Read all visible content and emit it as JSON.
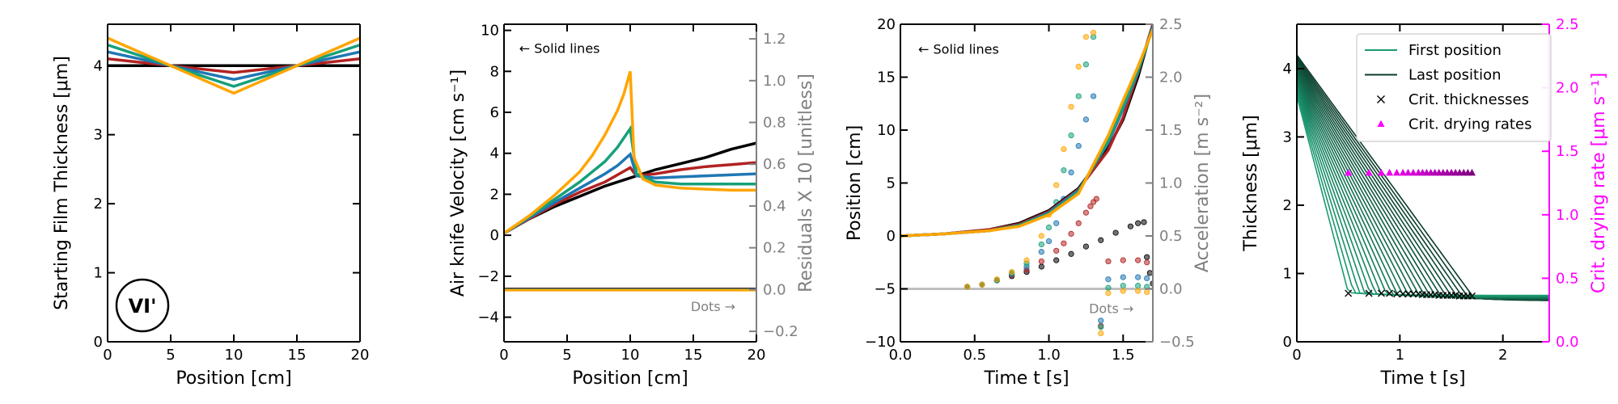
{
  "colors": {
    "black": "#000000",
    "red": "#b22222",
    "blue": "#1f77b4",
    "green": "#17a07a",
    "orange": "#ffa500",
    "gray": "#808080",
    "lightgray": "#c0c0c0",
    "magenta": "#ff00ff",
    "purple": "#800080",
    "first_green": "#1a9a72",
    "last_green": "#0c3b2b"
  },
  "chart_data": [
    {
      "type": "line",
      "panel_label": "VI'",
      "xlabel": "Position [cm]",
      "ylabel": "Starting Film Thickness [μm]",
      "xlim": [
        0,
        20
      ],
      "ylim": [
        0,
        4.6
      ],
      "xticks": [
        0,
        5,
        10,
        15,
        20
      ],
      "yticks": [
        0,
        1,
        2,
        3,
        4
      ],
      "series": [
        {
          "color": "black",
          "x": [
            0,
            20
          ],
          "y": [
            4.0,
            4.0
          ]
        },
        {
          "color": "red",
          "x": [
            0,
            5,
            10,
            15,
            20
          ],
          "y": [
            4.1,
            4.0,
            3.9,
            4.0,
            4.1
          ]
        },
        {
          "color": "blue",
          "x": [
            0,
            5,
            10,
            15,
            20
          ],
          "y": [
            4.2,
            4.0,
            3.8,
            4.0,
            4.2
          ]
        },
        {
          "color": "green",
          "x": [
            0,
            5,
            10,
            15,
            20
          ],
          "y": [
            4.3,
            4.0,
            3.7,
            4.0,
            4.3
          ]
        },
        {
          "color": "orange",
          "x": [
            0,
            5,
            10,
            15,
            20
          ],
          "y": [
            4.4,
            4.0,
            3.6,
            4.0,
            4.4
          ]
        }
      ]
    },
    {
      "type": "line",
      "xlabel": "Position [cm]",
      "ylabel": "Air knife Velocity [cm s⁻¹]",
      "ylabel2": "Residuals X 10 [unitless]",
      "xlim": [
        0,
        20
      ],
      "ylim": [
        -5.2,
        10.3
      ],
      "ylim2": [
        -0.25,
        1.27
      ],
      "xticks": [
        0,
        5,
        10,
        15,
        20
      ],
      "yticks": [
        -4,
        -2,
        0,
        2,
        4,
        6,
        8,
        10
      ],
      "yticks2": [
        -0.2,
        0.0,
        0.2,
        0.4,
        0.6,
        0.8,
        1.0,
        1.2
      ],
      "annotations": [
        {
          "text": "← Solid lines",
          "x": 1.2,
          "y": 8.9,
          "color": "black"
        },
        {
          "text": "Dots →",
          "x": 14.8,
          "y": -3.7,
          "color": "gray"
        }
      ],
      "residual_line_y": 0.0,
      "series": [
        {
          "color": "black",
          "x": [
            0,
            2,
            4,
            6,
            8,
            10,
            12,
            14,
            16,
            18,
            20
          ],
          "y": [
            0.1,
            0.8,
            1.4,
            1.9,
            2.4,
            2.8,
            3.2,
            3.5,
            3.8,
            4.2,
            4.5
          ]
        },
        {
          "color": "red",
          "x": [
            0,
            2,
            4,
            6,
            8,
            10,
            10.5,
            12,
            14,
            16,
            18,
            20
          ],
          "y": [
            0.1,
            0.8,
            1.5,
            2.1,
            2.6,
            3.3,
            2.9,
            3.0,
            3.2,
            3.35,
            3.45,
            3.55
          ]
        },
        {
          "color": "blue",
          "x": [
            0,
            2,
            4,
            6,
            8,
            9,
            10,
            10.5,
            12,
            14,
            16,
            18,
            20
          ],
          "y": [
            0.1,
            0.85,
            1.6,
            2.3,
            3.0,
            3.4,
            3.95,
            2.9,
            2.8,
            2.85,
            2.9,
            2.95,
            3.0
          ]
        },
        {
          "color": "green",
          "x": [
            0,
            2,
            4,
            6,
            8,
            9,
            10,
            10.5,
            12,
            14,
            16,
            18,
            20
          ],
          "y": [
            0.1,
            0.9,
            1.75,
            2.6,
            3.6,
            4.3,
            5.2,
            3.0,
            2.6,
            2.5,
            2.5,
            2.5,
            2.5
          ]
        },
        {
          "color": "orange",
          "x": [
            0,
            2,
            4,
            6,
            7,
            8,
            9,
            9.5,
            10,
            10.3,
            11,
            12,
            14,
            16,
            18,
            20
          ],
          "y": [
            0.1,
            0.95,
            1.95,
            3.1,
            3.9,
            4.9,
            6.1,
            6.9,
            8.0,
            3.8,
            2.75,
            2.45,
            2.3,
            2.25,
            2.2,
            2.2
          ]
        }
      ]
    },
    {
      "type": "line+scatter",
      "xlabel": "Time t [s]",
      "ylabel": "Position [cm]",
      "ylabel2": "Acceleration [m s⁻²]",
      "xlim": [
        0.0,
        1.7
      ],
      "ylim": [
        -10,
        20
      ],
      "ylim2": [
        -0.5,
        2.5
      ],
      "xticks": [
        0.0,
        0.5,
        1.0,
        1.5
      ],
      "yticks": [
        -10,
        -5,
        0,
        5,
        10,
        15,
        20
      ],
      "yticks2": [
        -0.5,
        0.0,
        0.5,
        1.0,
        1.5,
        2.0,
        2.5
      ],
      "annotations": [
        {
          "text": "← Solid lines",
          "x": 0.12,
          "y": 17.2,
          "color": "black"
        },
        {
          "text": "Dots →",
          "x": 1.27,
          "y": -7.3,
          "color": "gray"
        }
      ],
      "residual_line_y": 0.0,
      "series": [
        {
          "color": "black",
          "x": [
            0,
            0.3,
            0.6,
            0.8,
            1.0,
            1.2,
            1.4,
            1.5,
            1.6,
            1.7
          ],
          "y": [
            0,
            0.2,
            0.6,
            1.2,
            2.4,
            4.5,
            8.3,
            11.0,
            15.0,
            20.0
          ]
        },
        {
          "color": "red",
          "x": [
            0,
            0.3,
            0.6,
            0.8,
            1.0,
            1.2,
            1.4,
            1.5,
            1.6,
            1.7
          ],
          "y": [
            0,
            0.2,
            0.6,
            1.1,
            2.3,
            4.4,
            8.1,
            11.2,
            15.4,
            20.0
          ]
        },
        {
          "color": "blue",
          "x": [
            0,
            0.3,
            0.6,
            0.8,
            1.0,
            1.2,
            1.4,
            1.5,
            1.6,
            1.7
          ],
          "y": [
            0,
            0.2,
            0.5,
            1.0,
            2.2,
            4.3,
            8.8,
            12.0,
            15.5,
            19.8
          ]
        },
        {
          "color": "green",
          "x": [
            0,
            0.3,
            0.6,
            0.8,
            1.0,
            1.2,
            1.4,
            1.5,
            1.6,
            1.7
          ],
          "y": [
            0,
            0.2,
            0.5,
            1.0,
            2.1,
            4.2,
            9.0,
            12.2,
            15.6,
            19.6
          ]
        },
        {
          "color": "orange",
          "x": [
            0,
            0.3,
            0.6,
            0.8,
            1.0,
            1.2,
            1.4,
            1.5,
            1.6,
            1.7
          ],
          "y": [
            0,
            0.2,
            0.5,
            0.9,
            2.0,
            4.0,
            9.5,
            12.8,
            16.0,
            19.5
          ]
        }
      ],
      "dots": [
        {
          "color": "black",
          "x": [
            0.45,
            0.55,
            0.65,
            0.75,
            0.85,
            0.95,
            1.05,
            1.15,
            1.25,
            1.35,
            1.45,
            1.55,
            1.6,
            1.64,
            1.66,
            1.68,
            1.7
          ],
          "y": [
            0.02,
            0.04,
            0.08,
            0.12,
            0.16,
            0.21,
            0.27,
            0.33,
            0.4,
            0.46,
            0.53,
            0.59,
            0.62,
            0.63,
            0.3,
            0.15,
            0.05
          ]
        },
        {
          "color": "red",
          "x": [
            0.45,
            0.55,
            0.65,
            0.75,
            0.85,
            0.95,
            1.05,
            1.1,
            1.15,
            1.2,
            1.25,
            1.28,
            1.3,
            1.32,
            1.35,
            1.4,
            1.5,
            1.6,
            1.66
          ],
          "y": [
            0.02,
            0.04,
            0.08,
            0.13,
            0.18,
            0.26,
            0.36,
            0.43,
            0.52,
            0.62,
            0.72,
            0.78,
            0.82,
            0.85,
            -0.35,
            0.26,
            0.27,
            0.27,
            0.25
          ]
        },
        {
          "color": "blue",
          "x": [
            0.45,
            0.55,
            0.65,
            0.75,
            0.85,
            0.95,
            1.0,
            1.05,
            1.1,
            1.15,
            1.2,
            1.25,
            1.3,
            1.35,
            1.4,
            1.5,
            1.6,
            1.66
          ],
          "y": [
            0.02,
            0.04,
            0.08,
            0.14,
            0.21,
            0.35,
            0.45,
            0.62,
            0.85,
            1.1,
            1.35,
            1.6,
            1.82,
            -0.3,
            0.09,
            0.11,
            0.11,
            0.1
          ]
        },
        {
          "color": "green",
          "x": [
            0.45,
            0.55,
            0.65,
            0.75,
            0.85,
            0.95,
            1.0,
            1.05,
            1.1,
            1.15,
            1.2,
            1.25,
            1.3,
            1.35,
            1.4,
            1.5,
            1.6,
            1.66
          ],
          "y": [
            0.02,
            0.04,
            0.08,
            0.15,
            0.24,
            0.42,
            0.58,
            0.82,
            1.12,
            1.45,
            1.82,
            2.12,
            2.38,
            -0.36,
            0.01,
            0.03,
            0.03,
            0.02
          ]
        },
        {
          "color": "orange",
          "x": [
            0.45,
            0.55,
            0.65,
            0.75,
            0.85,
            0.95,
            1.0,
            1.05,
            1.1,
            1.15,
            1.2,
            1.25,
            1.3,
            1.35,
            1.4,
            1.5,
            1.6,
            1.66
          ],
          "y": [
            0.02,
            0.04,
            0.09,
            0.16,
            0.27,
            0.5,
            0.7,
            0.98,
            1.32,
            1.72,
            2.1,
            2.38,
            2.42,
            -0.42,
            -0.04,
            -0.02,
            -0.02,
            -0.03
          ]
        }
      ]
    },
    {
      "type": "line+scatter",
      "xlabel": "Time t [s]",
      "ylabel": "Thickness [μm]",
      "ylabel2": "Crit. drying rate [μm s⁻¹]",
      "xlim": [
        0,
        2.45
      ],
      "ylim": [
        0,
        4.65
      ],
      "ylim2": [
        0,
        2.5
      ],
      "xticks": [
        0,
        1,
        2
      ],
      "yticks": [
        0,
        1,
        2,
        3,
        4
      ],
      "yticks2": [
        0.0,
        0.5,
        1.0,
        1.5,
        2.0,
        2.5
      ],
      "legend_position": "top-right",
      "legend": [
        {
          "label": "First position",
          "type": "line",
          "color": "first_green"
        },
        {
          "label": "Last position",
          "type": "line",
          "color": "last_green"
        },
        {
          "label": "Crit. thicknesses",
          "type": "x",
          "color": "black"
        },
        {
          "label": "Crit. drying rates",
          "type": "triangle",
          "color": "magenta"
        }
      ],
      "drying_curves": {
        "count": 24,
        "t_crit_start": 0.5,
        "t_crit_end": 1.72,
        "h_start_first": 3.6,
        "h_start_last": 4.2,
        "h_final_first": 0.72,
        "h_final_last": 0.64
      },
      "crit_thicknesses": {
        "x": [
          0.5,
          0.7,
          0.82,
          0.9,
          0.97,
          1.03,
          1.08,
          1.13,
          1.18,
          1.22,
          1.26,
          1.3,
          1.34,
          1.38,
          1.42,
          1.46,
          1.5,
          1.54,
          1.58,
          1.62,
          1.66,
          1.7
        ],
        "y": [
          0.71,
          0.71,
          0.71,
          0.71,
          0.7,
          0.7,
          0.7,
          0.7,
          0.7,
          0.69,
          0.69,
          0.69,
          0.69,
          0.68,
          0.68,
          0.68,
          0.68,
          0.68,
          0.67,
          0.67,
          0.67,
          0.67
        ]
      },
      "crit_drying_rates": {
        "x": [
          0.5,
          0.7,
          0.82,
          0.9,
          0.97,
          1.03,
          1.08,
          1.13,
          1.18,
          1.22,
          1.26,
          1.3,
          1.34,
          1.38,
          1.42,
          1.46,
          1.5,
          1.54,
          1.58,
          1.62,
          1.66,
          1.7
        ],
        "y": [
          1.33,
          1.33,
          1.33,
          1.33,
          1.33,
          1.33,
          1.33,
          1.33,
          1.33,
          1.33,
          1.33,
          1.33,
          1.33,
          1.33,
          1.33,
          1.33,
          1.33,
          1.33,
          1.33,
          1.33,
          1.33,
          1.33
        ]
      }
    }
  ]
}
